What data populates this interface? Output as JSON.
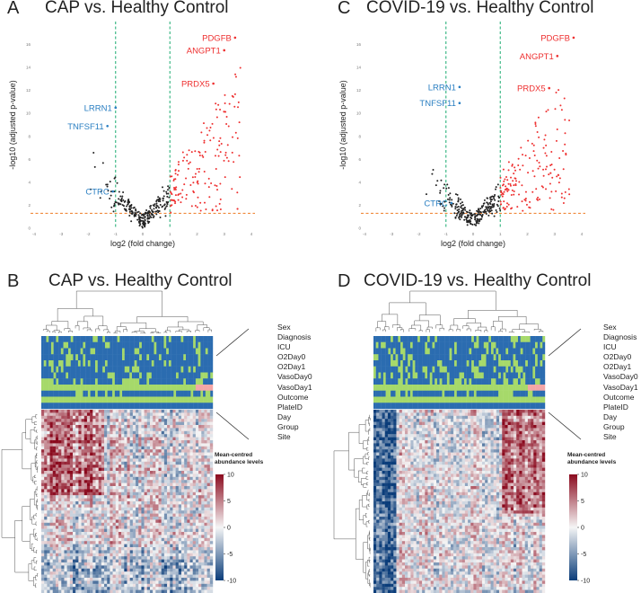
{
  "panels": {
    "A": {
      "label": "A",
      "title": "CAP vs. Healthy Control"
    },
    "B": {
      "label": "B",
      "title": "CAP vs. Healthy Control"
    },
    "C": {
      "label": "C",
      "title": "COVID-19 vs. Healthy Control"
    },
    "D": {
      "label": "D",
      "title": "COVID-19 vs. Healthy Control"
    }
  },
  "colors": {
    "up": "#ee3030",
    "down": "#2a7fc2",
    "ns": "#222222",
    "vline": "#2eb37c",
    "hline": "#f08a3c",
    "heat_high": "#8b0a1e",
    "heat_mid": "#f5f5f5",
    "heat_low": "#0b3d7a",
    "ann_blue": "#2b6cb0",
    "ann_green": "#a6d96a",
    "ann_pink": "#f4a6a6"
  },
  "heatmap_legend": {
    "title_line1": "Mean-centred",
    "title_line2": "abundance levels",
    "ticks": [
      "10",
      "5",
      "0",
      "-5",
      "-10"
    ]
  },
  "annotation_tracks": [
    "Sex",
    "Diagnosis",
    "ICU",
    "O2Day0",
    "O2Day1",
    "VasoDay0",
    "VasoDay1",
    "Outcome",
    "PlateID",
    "Day",
    "Group",
    "Site"
  ],
  "chart_data": [
    {
      "id": "A",
      "type": "scatter",
      "title": "CAP vs. Healthy Control",
      "xlabel": "log2 (fold change)",
      "ylabel": "-log10 (adjusted p-value)",
      "xlim": [
        -4,
        4
      ],
      "ylim": [
        0,
        18
      ],
      "xticks": [
        "-4",
        "-3",
        "-2",
        "-1",
        "0",
        "1",
        "2",
        "3",
        "4"
      ],
      "yticks": [
        "0",
        "2",
        "4",
        "6",
        "8",
        "10",
        "12",
        "14",
        "16"
      ],
      "thresholds": {
        "log2fc": [
          -1,
          1
        ],
        "neglog10p": 1.3
      },
      "labeled_points": [
        {
          "name": "PDGFB",
          "x": 3.4,
          "y": 16.6,
          "group": "up"
        },
        {
          "name": "ANGPT1",
          "x": 3.0,
          "y": 15.5,
          "group": "up"
        },
        {
          "name": "PRDX5",
          "x": 2.6,
          "y": 12.6,
          "group": "up"
        },
        {
          "name": "LRRN1",
          "x": -1.0,
          "y": 10.5,
          "group": "down"
        },
        {
          "name": "TNFSF11",
          "x": -1.3,
          "y": 8.9,
          "group": "down"
        },
        {
          "name": "CTRC",
          "x": -1.1,
          "y": 3.2,
          "group": "down"
        }
      ]
    },
    {
      "id": "C",
      "type": "scatter",
      "title": "COVID-19 vs. Healthy Control",
      "xlabel": "log2 (fold change)",
      "ylabel": "-log10 (adjusted p-value)",
      "xlim": [
        -4,
        4
      ],
      "ylim": [
        0,
        18
      ],
      "xticks": [
        "-4",
        "-3",
        "-2",
        "-1",
        "0",
        "1",
        "2",
        "3",
        "4"
      ],
      "yticks": [
        "0",
        "2",
        "4",
        "6",
        "8",
        "10",
        "12",
        "14",
        "16"
      ],
      "thresholds": {
        "log2fc": [
          -1,
          1
        ],
        "neglog10p": 1.3
      },
      "labeled_points": [
        {
          "name": "PDGFB",
          "x": 3.7,
          "y": 16.6,
          "group": "up"
        },
        {
          "name": "ANGPT1",
          "x": 3.1,
          "y": 15.0,
          "group": "up"
        },
        {
          "name": "PRDX5",
          "x": 2.8,
          "y": 12.2,
          "group": "up"
        },
        {
          "name": "LRRN1",
          "x": -0.5,
          "y": 12.3,
          "group": "down"
        },
        {
          "name": "TNFSF11",
          "x": -0.5,
          "y": 10.9,
          "group": "down"
        },
        {
          "name": "CTRC",
          "x": -0.8,
          "y": 2.2,
          "group": "down"
        }
      ]
    },
    {
      "id": "B",
      "type": "heatmap",
      "title": "CAP vs. Healthy Control",
      "color_range": [
        -10,
        10
      ],
      "legend_title": "Mean-centred abundance levels"
    },
    {
      "id": "D",
      "type": "heatmap",
      "title": "COVID-19 vs. Healthy Control",
      "color_range": [
        -10,
        10
      ],
      "legend_title": "Mean-centred abundance levels"
    }
  ]
}
